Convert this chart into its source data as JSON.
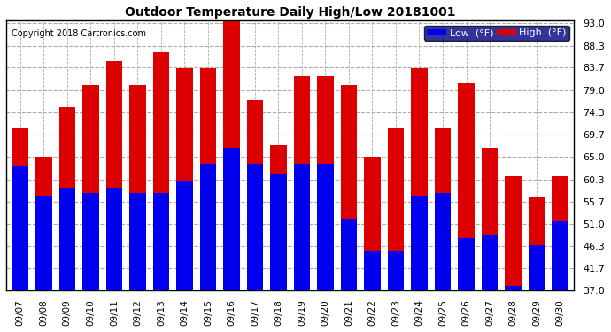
{
  "title": "Outdoor Temperature Daily High/Low 20181001",
  "copyright": "Copyright 2018 Cartronics.com",
  "dates": [
    "09/07",
    "09/08",
    "09/09",
    "09/10",
    "09/11",
    "09/12",
    "09/13",
    "09/14",
    "09/15",
    "09/16",
    "09/17",
    "09/18",
    "09/19",
    "09/20",
    "09/21",
    "09/22",
    "09/23",
    "09/24",
    "09/25",
    "09/26",
    "09/27",
    "09/28",
    "09/29",
    "09/30"
  ],
  "highs": [
    71.0,
    65.0,
    75.5,
    80.0,
    85.0,
    80.0,
    87.0,
    83.5,
    83.5,
    93.5,
    77.0,
    67.5,
    82.0,
    82.0,
    80.0,
    65.0,
    71.0,
    83.5,
    71.0,
    80.5,
    67.0,
    61.0,
    56.5,
    61.0
  ],
  "lows": [
    63.0,
    57.0,
    58.5,
    57.5,
    58.5,
    57.5,
    57.5,
    60.0,
    63.5,
    67.0,
    63.5,
    61.5,
    63.5,
    63.5,
    52.0,
    45.5,
    45.5,
    57.0,
    57.5,
    48.0,
    48.5,
    38.0,
    46.5,
    51.5
  ],
  "low_color": "#0000ee",
  "high_color": "#dd0000",
  "bg_color": "#ffffff",
  "grid_color": "#aaaaaa",
  "ylim_min": 37.0,
  "ylim_max": 93.0,
  "yticks": [
    37.0,
    41.7,
    46.3,
    51.0,
    55.7,
    60.3,
    65.0,
    69.7,
    74.3,
    79.0,
    83.7,
    88.3,
    93.0
  ],
  "legend_low_label": "Low  (°F)",
  "legend_high_label": "High  (°F)",
  "bar_width": 0.7
}
